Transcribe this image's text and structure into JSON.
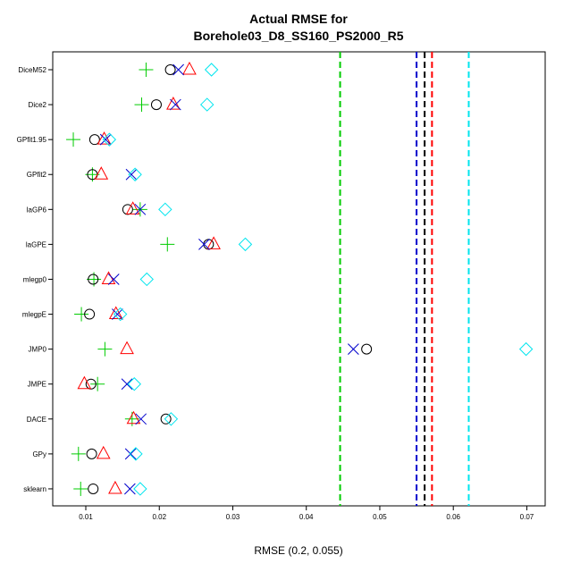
{
  "chart_data": {
    "type": "scatter",
    "title_line1": "Actual RMSE for",
    "title_line2": "Borehole03_D8_SS160_PS2000_R5",
    "xlabel": "RMSE (0.2, 0.055)",
    "xlim": [
      0.0055,
      0.0725
    ],
    "x_ticks": [
      0.01,
      0.02,
      0.03,
      0.04,
      0.05,
      0.06,
      0.07
    ],
    "x_tick_labels": [
      "0.01",
      "0.02",
      "0.03",
      "0.04",
      "0.05",
      "0.06",
      "0.07"
    ],
    "categories": [
      "DiceM52",
      "Dice2",
      "GPfit1.95",
      "GPfit2",
      "laGP6",
      "laGPE",
      "mlegp0",
      "mlegpE",
      "JMP0",
      "JMPE",
      "DACE",
      "GPy",
      "sklearn"
    ],
    "series": [
      {
        "marker": "plus",
        "color": "#00cc00",
        "values": [
          0.0182,
          0.0176,
          0.0083,
          0.0109,
          0.0174,
          0.0211,
          0.0111,
          0.0094,
          0.0126,
          0.0116,
          0.0163,
          0.009,
          0.0093
        ]
      },
      {
        "marker": "circle",
        "color": "#000000",
        "values": [
          0.0215,
          0.0196,
          0.0112,
          0.0109,
          0.0157,
          0.0267,
          0.011,
          0.0105,
          0.0482,
          0.0107,
          0.0209,
          0.0108,
          0.011
        ]
      },
      {
        "marker": "triangle",
        "color": "#ff0000",
        "values": [
          0.0241,
          0.0219,
          0.0125,
          0.0121,
          0.0164,
          0.0274,
          0.0131,
          0.0141,
          0.0156,
          0.0098,
          0.0165,
          0.0124,
          0.014
        ]
      },
      {
        "marker": "cross",
        "color": "#0000cc",
        "values": [
          0.0226,
          0.0222,
          0.0127,
          0.0162,
          0.0174,
          0.0261,
          0.0138,
          0.0143,
          0.0464,
          0.0156,
          0.0175,
          0.0161,
          0.016
        ]
      },
      {
        "marker": "diamond",
        "color": "#00e5ee",
        "values": [
          0.0271,
          0.0265,
          0.0132,
          0.0167,
          0.0208,
          0.0317,
          0.0183,
          0.0147,
          0.0699,
          0.0166,
          0.0216,
          0.0168,
          0.0174
        ]
      }
    ],
    "reference_lines": [
      {
        "x": 0.0446,
        "color": "#00cc00"
      },
      {
        "x": 0.055,
        "color": "#0000cc"
      },
      {
        "x": 0.0561,
        "color": "#000000"
      },
      {
        "x": 0.0571,
        "color": "#ff0000"
      },
      {
        "x": 0.0621,
        "color": "#00e5ee"
      }
    ],
    "grid": false
  }
}
